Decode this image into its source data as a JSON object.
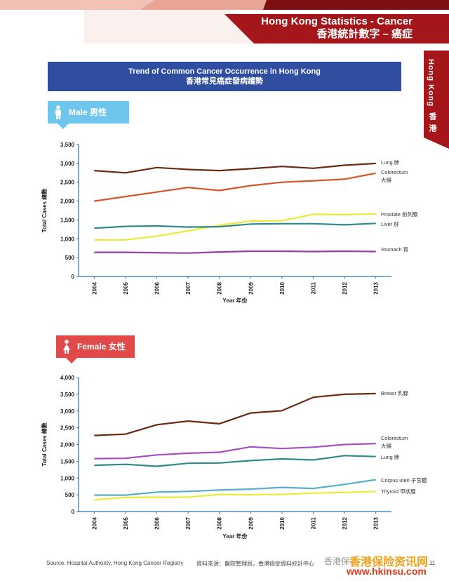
{
  "header": {
    "title_en": "Hong Kong Statistics - Cancer",
    "title_zh": "香港統計數字 – 癌症"
  },
  "side_tab": {
    "en": "Hong Kong",
    "zh": "香港"
  },
  "banner": {
    "title_en": "Trend of Common Cancer Occurrence in Hong Kong",
    "title_zh": "香港常見癌症發病趨勢"
  },
  "badges": {
    "male": "Male 男性",
    "female": "Female 女性"
  },
  "footer": {
    "source_en": "Source: Hospital Authority, Hong Kong Cancer Registry",
    "source_zh": "資料來源：醫院管理局，香港癌症資料統計中心",
    "page": "11"
  },
  "watermark": {
    "text": "香港保",
    "big": "香港保险资讯网",
    "url": "www.hkinsu.com"
  },
  "colors": {
    "header_red": "#a4161a",
    "banner_blue": "#2f4ea0",
    "male_badge": "#6ec6ec",
    "female_badge": "#e04a4a",
    "axis_blue": "#2f6fb5"
  },
  "chart_data": [
    {
      "type": "line",
      "ylabel": "Total Cases 總數",
      "xlabel": "Year 年份",
      "ylim": [
        0,
        3500
      ],
      "yticks": [
        "0",
        "500",
        "1,000",
        "1,500",
        "2,000",
        "2,500",
        "3,000",
        "3,500"
      ],
      "x": [
        "2004",
        "2005",
        "2006",
        "2007",
        "2008",
        "2009",
        "2010",
        "2011",
        "2012",
        "2013"
      ],
      "grid": false,
      "legend": "inline-right",
      "series": [
        {
          "name": "Lung 肺",
          "color": "#6b2a12",
          "values": [
            2810,
            2750,
            2890,
            2840,
            2810,
            2860,
            2920,
            2870,
            2950,
            3000
          ]
        },
        {
          "name": "Colorectum 大腸",
          "color": "#d9542a",
          "values": [
            2000,
            2120,
            2240,
            2360,
            2280,
            2410,
            2500,
            2540,
            2580,
            2740
          ]
        },
        {
          "name": "Prostate 前列腺",
          "color": "#eaea3a",
          "values": [
            970,
            970,
            1070,
            1210,
            1360,
            1470,
            1480,
            1650,
            1640,
            1660
          ]
        },
        {
          "name": "Liver 肝",
          "color": "#2e8a8a",
          "values": [
            1280,
            1330,
            1340,
            1310,
            1320,
            1390,
            1400,
            1400,
            1370,
            1410
          ]
        },
        {
          "name": "Stomach 胃",
          "color": "#9a3aaa",
          "values": [
            640,
            640,
            630,
            620,
            650,
            670,
            670,
            660,
            670,
            660
          ]
        }
      ]
    },
    {
      "type": "line",
      "ylabel": "Total Cases 總數",
      "xlabel": "Year 年份",
      "ylim": [
        0,
        4000
      ],
      "yticks": [
        "0",
        "500",
        "1,000",
        "1,500",
        "2,000",
        "2,500",
        "3,000",
        "3,500",
        "4,000"
      ],
      "x": [
        "2004",
        "2005",
        "2006",
        "2007",
        "2008",
        "2009",
        "2010",
        "2011",
        "2012",
        "2013"
      ],
      "grid": false,
      "legend": "inline-right",
      "series": [
        {
          "name": "Breast 乳腺",
          "color": "#6b2a12",
          "values": [
            2270,
            2310,
            2590,
            2700,
            2620,
            2940,
            3010,
            3410,
            3500,
            3520
          ]
        },
        {
          "name": "Colorectum 大腸",
          "color": "#a64fbf",
          "values": [
            1580,
            1590,
            1690,
            1740,
            1770,
            1930,
            1880,
            1920,
            2000,
            2030
          ]
        },
        {
          "name": "Lung 肺",
          "color": "#2e8a8a",
          "values": [
            1380,
            1410,
            1350,
            1440,
            1450,
            1520,
            1570,
            1540,
            1670,
            1640
          ]
        },
        {
          "name": "Corpus uteri 子宮體",
          "color": "#5aaec8",
          "values": [
            490,
            490,
            580,
            600,
            640,
            670,
            720,
            690,
            810,
            950
          ]
        },
        {
          "name": "Thyroid 甲狀腺",
          "color": "#eaea3a",
          "values": [
            350,
            420,
            430,
            430,
            510,
            500,
            510,
            550,
            570,
            600
          ]
        }
      ]
    }
  ]
}
